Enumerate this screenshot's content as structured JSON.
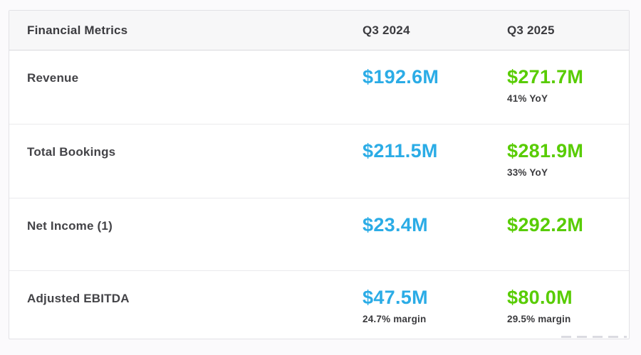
{
  "table": {
    "header": {
      "title": "Financial Metrics",
      "col_2024": "Q3 2024",
      "col_2025": "Q3 2025"
    },
    "rows": [
      {
        "label": "Revenue",
        "v2024": "$192.6M",
        "note2024": "",
        "v2025": "$271.7M",
        "note2025": "41% YoY"
      },
      {
        "label": "Total Bookings",
        "v2024": "$211.5M",
        "note2024": "",
        "v2025": "$281.9M",
        "note2025": "33% YoY"
      },
      {
        "label": "Net Income (1)",
        "v2024": "$23.4M",
        "note2024": "",
        "v2025": "$292.2M",
        "note2025": ""
      },
      {
        "label": "Adjusted EBITDA",
        "v2024": "$47.5M",
        "note2024": "24.7% margin",
        "v2025": "$80.0M",
        "note2025": "29.5% margin"
      }
    ],
    "colors": {
      "q3_2024_value": "#2bace6",
      "q3_2025_value": "#58cc02",
      "label_text": "#434347",
      "header_background": "#f7f7f8",
      "border": "#e2e2e6"
    }
  },
  "chart_data": {
    "type": "table",
    "title": "Financial Metrics",
    "columns": [
      "Financial Metrics",
      "Q3 2024",
      "Q3 2025"
    ],
    "rows": [
      {
        "metric": "Revenue",
        "q3_2024": "$192.6M",
        "q3_2025": "$271.7M",
        "q3_2025_note": "41% YoY"
      },
      {
        "metric": "Total Bookings",
        "q3_2024": "$211.5M",
        "q3_2025": "$281.9M",
        "q3_2025_note": "33% YoY"
      },
      {
        "metric": "Net Income (1)",
        "q3_2024": "$23.4M",
        "q3_2025": "$292.2M"
      },
      {
        "metric": "Adjusted EBITDA",
        "q3_2024": "$47.5M",
        "q3_2024_note": "24.7% margin",
        "q3_2025": "$80.0M",
        "q3_2025_note": "29.5% margin"
      }
    ],
    "values_numeric_millions": {
      "revenue": {
        "q3_2024": 192.6,
        "q3_2025": 271.7,
        "yoy_pct": 41
      },
      "total_bookings": {
        "q3_2024": 211.5,
        "q3_2025": 281.9,
        "yoy_pct": 33
      },
      "net_income": {
        "q3_2024": 23.4,
        "q3_2025": 292.2
      },
      "adjusted_ebitda": {
        "q3_2024": 47.5,
        "q3_2025": 80.0,
        "margin_2024_pct": 24.7,
        "margin_2025_pct": 29.5
      }
    }
  }
}
